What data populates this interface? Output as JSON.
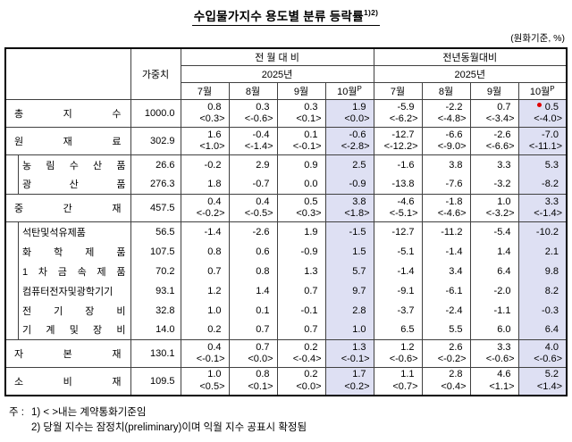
{
  "title": {
    "text": "수입물가지수 용도별 분류 등락률",
    "superscript": "1)2)"
  },
  "unit_note": "(원화기준, %)",
  "table": {
    "weight_header": "가중치",
    "group_headers": [
      "전 월 대 비",
      "전년동월대비"
    ],
    "year_headers": [
      "2025년",
      "2025년"
    ],
    "month_headers": [
      "7월",
      "8월",
      "9월",
      "10월"
    ],
    "prelim_superscript": "P",
    "highlight_color": "#dee0f3",
    "red_dot_color": "#e00000",
    "rows": [
      {
        "label": "총 지 수",
        "level": 0,
        "weight": "1000.0",
        "mom": [
          [
            "0.8",
            "<0.3>"
          ],
          [
            "0.3",
            "<-0.6>"
          ],
          [
            "0.3",
            "<0.1>"
          ],
          [
            "1.9",
            "<0.0>"
          ]
        ],
        "yoy": [
          [
            "-5.9",
            "<-6.2>"
          ],
          [
            "-2.2",
            "<-4.8>"
          ],
          [
            "0.7",
            "<-3.4>"
          ],
          [
            "0.5",
            "<-4.0>"
          ]
        ],
        "red_dot": {
          "col": "yoy",
          "idx": 3
        }
      },
      {
        "label": "원 재 료",
        "level": 0,
        "weight": "302.9",
        "mom": [
          [
            "1.6",
            "<1.0>"
          ],
          [
            "-0.4",
            "<-1.4>"
          ],
          [
            "0.1",
            "<-0.1>"
          ],
          [
            "-0.6",
            "<-2.8>"
          ]
        ],
        "yoy": [
          [
            "-12.7",
            "<-12.2>"
          ],
          [
            "-6.6",
            "<-9.0>"
          ],
          [
            "-2.6",
            "<-6.6>"
          ],
          [
            "-7.0",
            "<-11.1>"
          ]
        ]
      },
      {
        "label": "농 림 수 산 품",
        "level": 1,
        "new_group": true,
        "weight": "26.6",
        "mom": [
          "-0.2",
          "2.9",
          "0.9",
          "2.5"
        ],
        "yoy": [
          "-1.6",
          "3.8",
          "3.3",
          "5.3"
        ]
      },
      {
        "label": "광 산 품",
        "level": 1,
        "weight": "276.3",
        "mom": [
          "1.8",
          "-0.7",
          "0.0",
          "-0.9"
        ],
        "yoy": [
          "-13.8",
          "-7.6",
          "-3.2",
          "-8.2"
        ]
      },
      {
        "label": "중 간 재",
        "level": 0,
        "weight": "457.5",
        "mom": [
          [
            "0.4",
            "<-0.2>"
          ],
          [
            "0.4",
            "<-0.5>"
          ],
          [
            "0.5",
            "<0.3>"
          ],
          [
            "3.8",
            "<1.8>"
          ]
        ],
        "yoy": [
          [
            "-4.6",
            "<-5.1>"
          ],
          [
            "-1.8",
            "<-4.6>"
          ],
          [
            "1.0",
            "<-3.2>"
          ],
          [
            "3.3",
            "<-1.4>"
          ]
        ]
      },
      {
        "label": "석탄및석유제품",
        "level": 1,
        "new_group": true,
        "weight": "56.5",
        "mom": [
          "-1.4",
          "-2.6",
          "1.9",
          "-1.5"
        ],
        "yoy": [
          "-12.7",
          "-11.2",
          "-5.4",
          "-10.2"
        ]
      },
      {
        "label": "화 학 제 품",
        "level": 1,
        "weight": "107.5",
        "mom": [
          "0.8",
          "0.6",
          "-0.9",
          "1.5"
        ],
        "yoy": [
          "-5.1",
          "-1.4",
          "1.4",
          "2.1"
        ]
      },
      {
        "label": "1 차 금 속 제 품",
        "level": 1,
        "weight": "70.2",
        "mom": [
          "0.7",
          "0.8",
          "1.3",
          "5.7"
        ],
        "yoy": [
          "-1.4",
          "3.4",
          "6.4",
          "9.8"
        ]
      },
      {
        "label": "컴퓨터전자및광학기기",
        "level": 1,
        "weight": "93.1",
        "mom": [
          "1.2",
          "1.4",
          "0.7",
          "9.7"
        ],
        "yoy": [
          "-9.1",
          "-6.1",
          "-2.0",
          "8.2"
        ]
      },
      {
        "label": "전 기 장 비",
        "level": 1,
        "weight": "32.8",
        "mom": [
          "1.0",
          "0.1",
          "-0.1",
          "2.8"
        ],
        "yoy": [
          "-3.7",
          "-2.4",
          "-1.1",
          "-0.3"
        ]
      },
      {
        "label": "기 계 및 장 비",
        "level": 1,
        "weight": "14.0",
        "mom": [
          "0.2",
          "0.7",
          "0.7",
          "1.0"
        ],
        "yoy": [
          "6.5",
          "5.5",
          "6.0",
          "6.4"
        ]
      },
      {
        "label": "자 본 재",
        "level": 0,
        "weight": "130.1",
        "mom": [
          [
            "0.4",
            "<-0.1>"
          ],
          [
            "0.7",
            "<0.0>"
          ],
          [
            "0.2",
            "<-0.4>"
          ],
          [
            "1.3",
            "<-0.1>"
          ]
        ],
        "yoy": [
          [
            "1.2",
            "<-0.6>"
          ],
          [
            "2.6",
            "<-0.2>"
          ],
          [
            "3.3",
            "<-0.6>"
          ],
          [
            "4.0",
            "<-0.6>"
          ]
        ]
      },
      {
        "label": "소 비 재",
        "level": 0,
        "weight": "109.5",
        "mom": [
          [
            "1.0",
            "<0.5>"
          ],
          [
            "0.8",
            "<0.1>"
          ],
          [
            "0.2",
            "<0.0>"
          ],
          [
            "1.7",
            "<0.2>"
          ]
        ],
        "yoy": [
          [
            "1.1",
            "<0.7>"
          ],
          [
            "2.8",
            "<0.4>"
          ],
          [
            "4.6",
            "<1.1>"
          ],
          [
            "5.2",
            "<1.4>"
          ]
        ]
      }
    ]
  },
  "footnotes": {
    "prefix": "주 :",
    "items": [
      "1) < >내는 계약통화기준임",
      "2) 당월 지수는 잠정치(preliminary)이며 익월 지수 공표시 확정됨"
    ]
  }
}
